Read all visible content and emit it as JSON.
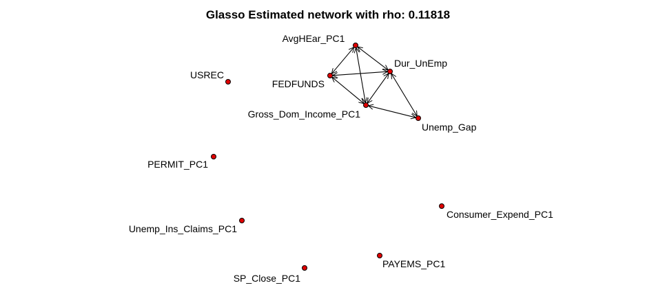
{
  "title": "Glasso Estimated network with rho:  0.11818",
  "nodes": [
    {
      "id": "AvgHEar_PC1",
      "label": "AvgHEar_PC1"
    },
    {
      "id": "Dur_UnEmp",
      "label": "Dur_UnEmp"
    },
    {
      "id": "FEDFUNDS",
      "label": "FEDFUNDS"
    },
    {
      "id": "Gross_Dom_Income_PC1",
      "label": "Gross_Dom_Income_PC1"
    },
    {
      "id": "Unemp_Gap",
      "label": "Unemp_Gap"
    },
    {
      "id": "USREC",
      "label": "USREC"
    },
    {
      "id": "PERMIT_PC1",
      "label": "PERMIT_PC1"
    },
    {
      "id": "Unemp_Ins_Claims_PC1",
      "label": "Unemp_Ins_Claims_PC1"
    },
    {
      "id": "Consumer_Expend_PC1",
      "label": "Consumer_Expend_PC1"
    },
    {
      "id": "PAYEMS_PC1",
      "label": "PAYEMS_PC1"
    },
    {
      "id": "SP_Close_PC1",
      "label": "SP_Close_PC1"
    }
  ],
  "edges": [
    {
      "from": "AvgHEar_PC1",
      "to": "Dur_UnEmp"
    },
    {
      "from": "AvgHEar_PC1",
      "to": "FEDFUNDS"
    },
    {
      "from": "AvgHEar_PC1",
      "to": "Gross_Dom_Income_PC1"
    },
    {
      "from": "FEDFUNDS",
      "to": "Dur_UnEmp"
    },
    {
      "from": "FEDFUNDS",
      "to": "Gross_Dom_Income_PC1"
    },
    {
      "from": "Dur_UnEmp",
      "to": "Gross_Dom_Income_PC1"
    },
    {
      "from": "Dur_UnEmp",
      "to": "Unemp_Gap"
    },
    {
      "from": "Gross_Dom_Income_PC1",
      "to": "Unemp_Gap"
    }
  ],
  "colors": {
    "node_fill": "#e00000",
    "node_stroke": "#000000",
    "edge": "#000000"
  }
}
